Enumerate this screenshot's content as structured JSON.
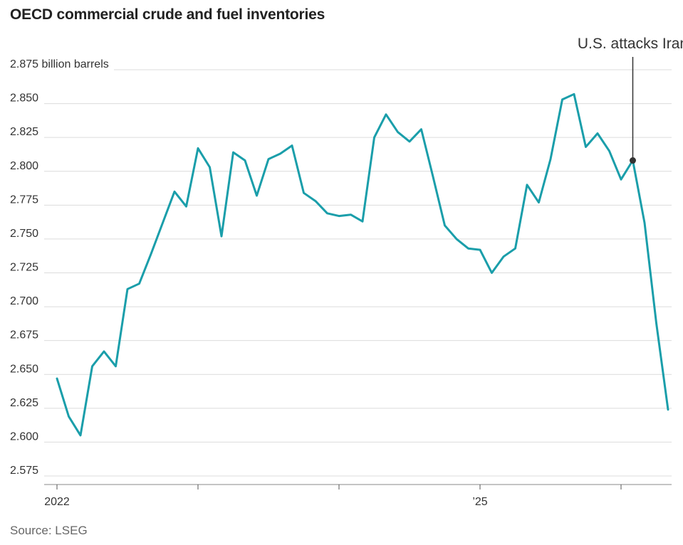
{
  "header": {
    "title": "OECD commercial crude and fuel inventories"
  },
  "footer": {
    "source": "Source: LSEG"
  },
  "chart_data": {
    "type": "line",
    "title": "OECD commercial crude and fuel inventories",
    "ylabel": "billion barrels",
    "yunit_label": "2.875 billion barrels",
    "ylim": [
      2.575,
      2.875
    ],
    "yticks": [
      "2.575",
      "2.600",
      "2.625",
      "2.650",
      "2.675",
      "2.700",
      "2.725",
      "2.750",
      "2.775",
      "2.800",
      "2.825",
      "2.850",
      "2.875"
    ],
    "xticks": [
      {
        "label": "2022",
        "x": 0
      },
      {
        "label": "",
        "x": 12
      },
      {
        "label": "",
        "x": 24
      },
      {
        "label": "’25",
        "x": 36
      },
      {
        "label": "",
        "x": 48
      }
    ],
    "grid": true,
    "color": "#1a9eaa",
    "series": [
      {
        "values": [
          2.647,
          2.619,
          2.605,
          2.656,
          2.667,
          2.656,
          2.713,
          2.717,
          2.739,
          2.762,
          2.785,
          2.774,
          2.817,
          2.803,
          2.752,
          2.814,
          2.808,
          2.782,
          2.809,
          2.813,
          2.819,
          2.784,
          2.778,
          2.769,
          2.767,
          2.768,
          2.763,
          2.825,
          2.842,
          2.829,
          2.822,
          2.831,
          2.796,
          2.76,
          2.75,
          2.743,
          2.742,
          2.725,
          2.737,
          2.743,
          2.79,
          2.777,
          2.809,
          2.853,
          2.857,
          2.818,
          2.828,
          2.815,
          2.794,
          2.808,
          2.762,
          2.688,
          2.624
        ]
      }
    ],
    "annotation": {
      "text": "U.S. attacks Iran",
      "x": 49,
      "y": 2.808
    }
  }
}
